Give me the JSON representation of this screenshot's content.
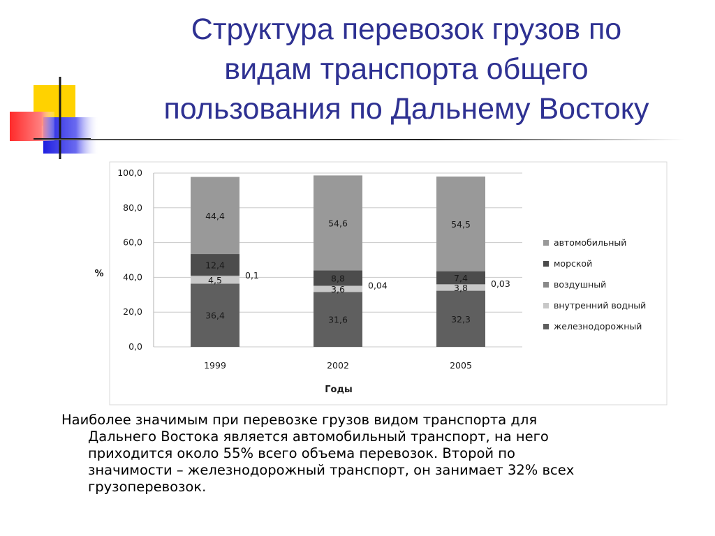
{
  "title_lines": [
    "Структура перевозок грузов по",
    "видам транспорта общего",
    "пользования по Дальнему Востоку"
  ],
  "colors": {
    "title": "#2e3192",
    "deco_yellow": "#ffd200",
    "deco_red": "#ff3030",
    "deco_blue": "#2b2be0"
  },
  "chart_data": {
    "type": "bar",
    "stacked": true,
    "categories": [
      "1999",
      "2002",
      "2005"
    ],
    "series": [
      {
        "name": "железнодорожный",
        "values": [
          36.4,
          31.6,
          32.3
        ],
        "labels": [
          "36,4",
          "31,6",
          "32,3"
        ],
        "color": "#5f5f5f"
      },
      {
        "name": "внутренний водный",
        "values": [
          4.5,
          3.6,
          3.8
        ],
        "labels": [
          "4,5",
          "3,6",
          "3,8"
        ],
        "color": "#c8c8c8"
      },
      {
        "name": "воздушный",
        "values": [
          0.1,
          0.04,
          0.03
        ],
        "labels": [
          "0,1",
          "0,04",
          "0,03"
        ],
        "color": "#8a8a8a"
      },
      {
        "name": "морской",
        "values": [
          12.4,
          8.8,
          7.4
        ],
        "labels": [
          "12,4",
          "8,8",
          "7,4"
        ],
        "color": "#4c4c4c"
      },
      {
        "name": "автомобильный",
        "values": [
          44.4,
          54.6,
          54.5
        ],
        "labels": [
          "44,4",
          "54,6",
          "54,5"
        ],
        "color": "#999999"
      }
    ],
    "ylabel": "%",
    "xlabel": "Годы",
    "ylim": [
      0,
      100
    ],
    "yticks": [
      "0,0",
      "20,0",
      "40,0",
      "60,0",
      "80,0",
      "100,0"
    ],
    "grid": true,
    "legend_position": "right"
  },
  "caption": {
    "lines": [
      "Наиболее значимым при перевозке грузов видом транспорта для",
      "Дальнего Востока является автомобильный транспорт, на него",
      "приходится около 55% всего объема перевозок. Второй по",
      "значимости – железнодорожный транспорт, он занимает 32% всех",
      "грузоперевозок."
    ]
  }
}
